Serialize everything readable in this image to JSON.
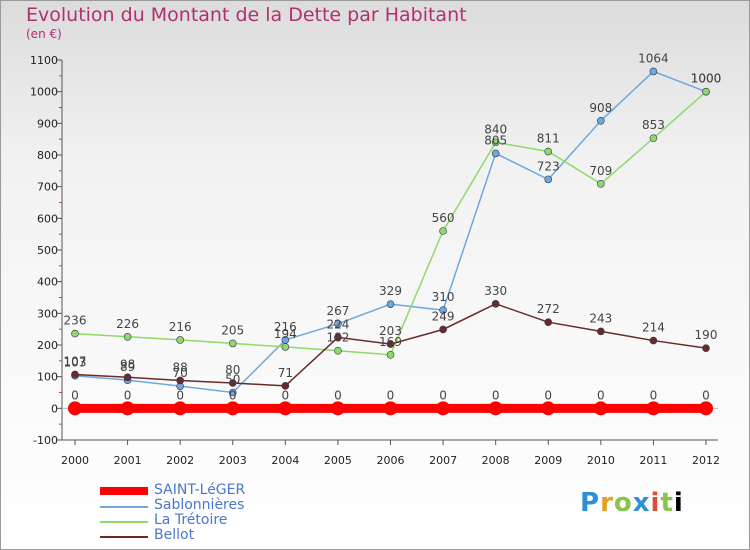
{
  "header": {
    "title": "Evolution du Montant de la Dette par Habitant",
    "unit": "(en €)"
  },
  "brand": {
    "letters": [
      "P",
      "r",
      "o",
      "x",
      "i",
      "t",
      "i"
    ]
  },
  "chart_data": {
    "type": "line",
    "x": [
      "2000",
      "2001",
      "2002",
      "2003",
      "2004",
      "2005",
      "2006",
      "2007",
      "2008",
      "2009",
      "2010",
      "2011",
      "2012"
    ],
    "ylim": [
      -100,
      1100
    ],
    "yticks": [
      -100,
      0,
      100,
      200,
      300,
      400,
      500,
      600,
      700,
      800,
      900,
      1000,
      1100
    ],
    "grid": false,
    "legend_position": "bottom-left",
    "series": [
      {
        "name": "SAINT-LéGER",
        "color": "#ff0000",
        "values": [
          0,
          0,
          0,
          0,
          0,
          0,
          0,
          0,
          0,
          0,
          0,
          0,
          0
        ]
      },
      {
        "name": "Sablonnières",
        "color": "#6fa8dc",
        "values": [
          103,
          89,
          70,
          50,
          216,
          267,
          329,
          310,
          805,
          723,
          908,
          1064,
          1000
        ]
      },
      {
        "name": "La Trétoire",
        "color": "#8fd96a",
        "values": [
          236,
          226,
          216,
          205,
          194,
          182,
          169,
          560,
          840,
          811,
          709,
          853,
          1000
        ]
      },
      {
        "name": "Bellot",
        "color": "#6b2a2a",
        "values": [
          107,
          98,
          88,
          80,
          71,
          224,
          203,
          249,
          330,
          272,
          243,
          214,
          190
        ]
      }
    ],
    "labels": [
      {
        "series": 0,
        "i": 0,
        "text": "0"
      },
      {
        "series": 0,
        "i": 1,
        "text": "0"
      },
      {
        "series": 0,
        "i": 2,
        "text": "0"
      },
      {
        "series": 0,
        "i": 3,
        "text": "0"
      },
      {
        "series": 0,
        "i": 4,
        "text": "0"
      },
      {
        "series": 0,
        "i": 5,
        "text": "0"
      },
      {
        "series": 0,
        "i": 6,
        "text": "0"
      },
      {
        "series": 0,
        "i": 7,
        "text": "0"
      },
      {
        "series": 0,
        "i": 8,
        "text": "0"
      },
      {
        "series": 0,
        "i": 9,
        "text": "0"
      },
      {
        "series": 0,
        "i": 10,
        "text": "0"
      },
      {
        "series": 0,
        "i": 11,
        "text": "0"
      },
      {
        "series": 0,
        "i": 12,
        "text": "0"
      },
      {
        "series": 1,
        "i": 0,
        "text": "103"
      },
      {
        "series": 1,
        "i": 1,
        "text": "89"
      },
      {
        "series": 1,
        "i": 2,
        "text": "70"
      },
      {
        "series": 1,
        "i": 3,
        "text": "50"
      },
      {
        "series": 1,
        "i": 4,
        "text": "216"
      },
      {
        "series": 1,
        "i": 5,
        "text": "267"
      },
      {
        "series": 1,
        "i": 6,
        "text": "329"
      },
      {
        "series": 1,
        "i": 7,
        "text": "310"
      },
      {
        "series": 1,
        "i": 8,
        "text": "805"
      },
      {
        "series": 1,
        "i": 9,
        "text": "723"
      },
      {
        "series": 1,
        "i": 10,
        "text": "908"
      },
      {
        "series": 1,
        "i": 11,
        "text": "1064"
      },
      {
        "series": 1,
        "i": 12,
        "text": "1000"
      },
      {
        "series": 2,
        "i": 0,
        "text": "236"
      },
      {
        "series": 2,
        "i": 1,
        "text": "226"
      },
      {
        "series": 2,
        "i": 2,
        "text": "216"
      },
      {
        "series": 2,
        "i": 3,
        "text": "205"
      },
      {
        "series": 2,
        "i": 4,
        "text": "194"
      },
      {
        "series": 2,
        "i": 5,
        "text": "182"
      },
      {
        "series": 2,
        "i": 6,
        "text": "169"
      },
      {
        "series": 2,
        "i": 7,
        "text": "560"
      },
      {
        "series": 2,
        "i": 8,
        "text": "840"
      },
      {
        "series": 2,
        "i": 9,
        "text": "811"
      },
      {
        "series": 2,
        "i": 10,
        "text": "709"
      },
      {
        "series": 2,
        "i": 11,
        "text": "853"
      },
      {
        "series": 2,
        "i": 12,
        "text": "1000"
      },
      {
        "series": 3,
        "i": 0,
        "text": "107"
      },
      {
        "series": 3,
        "i": 1,
        "text": "98"
      },
      {
        "series": 3,
        "i": 2,
        "text": "88"
      },
      {
        "series": 3,
        "i": 3,
        "text": "80"
      },
      {
        "series": 3,
        "i": 4,
        "text": "71"
      },
      {
        "series": 3,
        "i": 5,
        "text": "224"
      },
      {
        "series": 3,
        "i": 6,
        "text": "203"
      },
      {
        "series": 3,
        "i": 7,
        "text": "249"
      },
      {
        "series": 3,
        "i": 8,
        "text": "330"
      },
      {
        "series": 3,
        "i": 9,
        "text": "272"
      },
      {
        "series": 3,
        "i": 10,
        "text": "243"
      },
      {
        "series": 3,
        "i": 11,
        "text": "214"
      },
      {
        "series": 3,
        "i": 12,
        "text": "190"
      }
    ]
  }
}
